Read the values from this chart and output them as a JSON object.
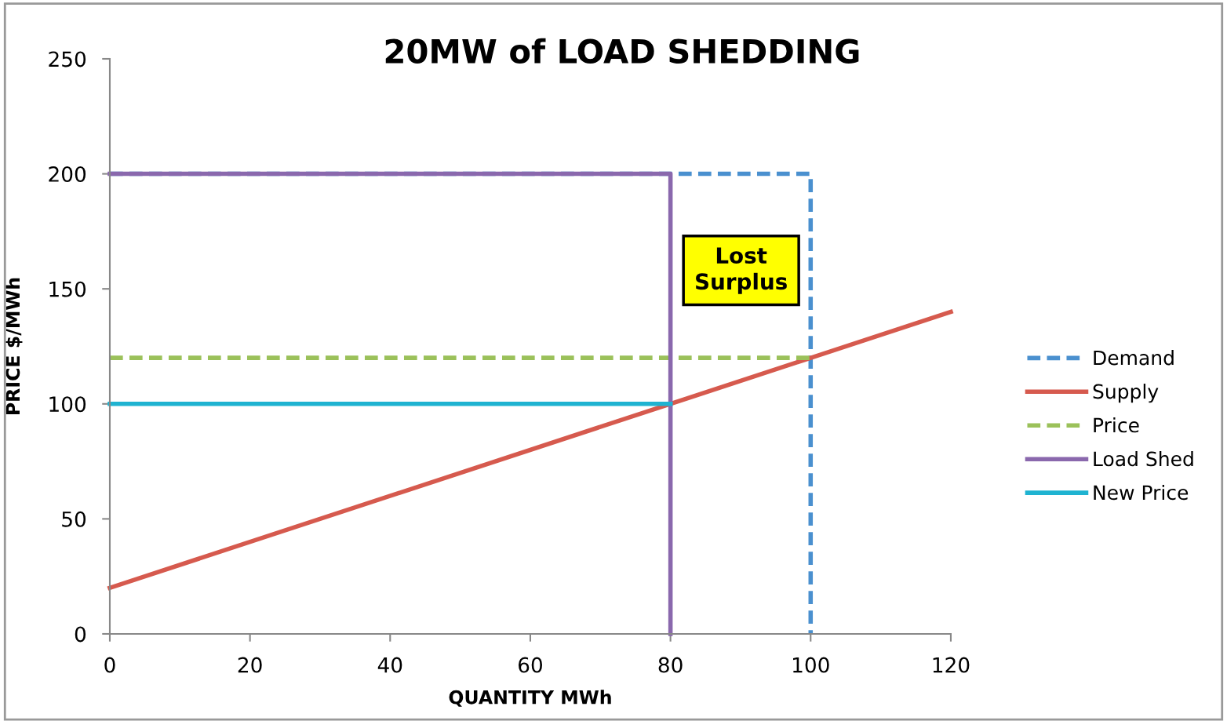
{
  "chart_data": {
    "type": "line",
    "title": "20MW of LOAD SHEDDING",
    "xlabel": "QUANTITY MWh",
    "ylabel": "PRICE $/MWh",
    "series": [
      {
        "name": "Demand",
        "color": "#4a90cf",
        "x": [
          0,
          100,
          100
        ],
        "values": [
          200,
          200,
          0
        ],
        "line_style": "dashed"
      },
      {
        "name": "Supply",
        "color": "#d65a4e",
        "x": [
          0,
          120
        ],
        "values": [
          20,
          140
        ],
        "line_style": "solid"
      },
      {
        "name": "Price",
        "color": "#9bc15a",
        "x": [
          0,
          100
        ],
        "values": [
          120,
          120
        ],
        "line_style": "dashed"
      },
      {
        "name": "Load Shed",
        "color": "#8a68ad",
        "x": [
          0,
          80,
          80
        ],
        "values": [
          200,
          200,
          0
        ],
        "line_style": "solid"
      },
      {
        "name": "New Price",
        "color": "#1fb3d1",
        "x": [
          0,
          80
        ],
        "values": [
          100,
          100
        ],
        "line_style": "solid"
      }
    ],
    "annotations": [
      "Lost\nSurplus"
    ],
    "xlim": [
      0,
      120
    ],
    "xticks": [
      0,
      20,
      40,
      60,
      80,
      100,
      120
    ],
    "ylim": [
      0,
      250
    ],
    "yticks": [
      0,
      50,
      100,
      150,
      200,
      250
    ],
    "grid": false,
    "legend": "right",
    "marker": "none"
  }
}
